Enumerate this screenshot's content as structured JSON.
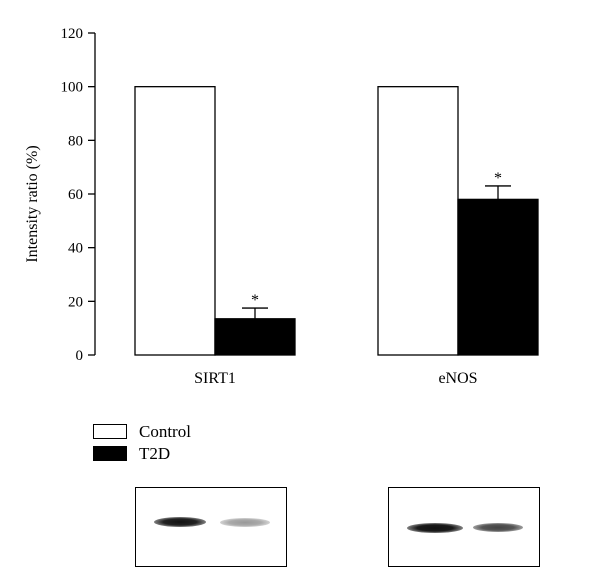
{
  "chart_data": {
    "type": "bar",
    "ylabel": "Intensity ratio (%)",
    "ylim": [
      0,
      120
    ],
    "yticks": [
      0,
      20,
      40,
      60,
      80,
      100,
      120
    ],
    "categories": [
      "SIRT1",
      "eNOS"
    ],
    "series": [
      {
        "name": "Control",
        "values": [
          100,
          100
        ],
        "color": "#ffffff"
      },
      {
        "name": "T2D",
        "values": [
          13.5,
          58
        ],
        "errors": [
          4,
          5
        ],
        "color": "#000000"
      }
    ],
    "annotations": [
      {
        "category": "SIRT1",
        "series": "T2D",
        "text": "*"
      },
      {
        "category": "eNOS",
        "series": "T2D",
        "text": "*"
      }
    ],
    "legend": {
      "placement": "bottom-left",
      "entries": [
        "Control",
        "T2D"
      ]
    },
    "grid": false
  },
  "blots": [
    {
      "category": "SIRT1",
      "bands": [
        "Control",
        "T2D"
      ]
    },
    {
      "category": "eNOS",
      "bands": [
        "Control",
        "T2D"
      ]
    }
  ]
}
